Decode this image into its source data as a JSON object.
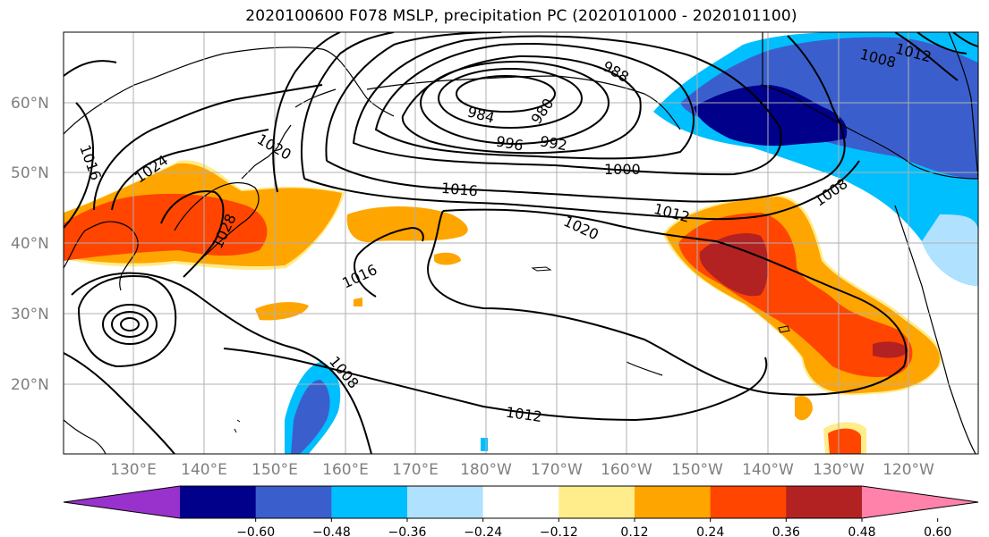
{
  "title": "2020100600 F078 MSLP, precipitation PC (2020101000 - 2020101100)",
  "map": {
    "lat_labels": [
      "60°N",
      "50°N",
      "40°N",
      "30°N",
      "20°N"
    ],
    "lon_labels": [
      "130°E",
      "140°E",
      "150°E",
      "160°E",
      "170°E",
      "180°W",
      "170°W",
      "160°W",
      "150°W",
      "140°W",
      "130°W",
      "120°W"
    ],
    "isobar_labels": [
      "1016",
      "1024",
      "1020",
      "1028",
      "1016",
      "1016",
      "1000",
      "996",
      "992",
      "984",
      "980",
      "988",
      "1012",
      "1020",
      "1008",
      "1008",
      "1012",
      "1012",
      "1008"
    ]
  },
  "colorbar": {
    "colors": [
      "#9932cc",
      "#00008b",
      "#3a5fcd",
      "#00bfff",
      "#b0e2ff",
      "#ffffff",
      "#ffec8b",
      "#ffa500",
      "#ff4500",
      "#b22222",
      "#ff82ab"
    ],
    "labels": [
      "−0.60",
      "−0.48",
      "−0.36",
      "−0.24",
      "−0.12",
      "0.12",
      "0.24",
      "0.36",
      "0.48",
      "0.60"
    ]
  }
}
